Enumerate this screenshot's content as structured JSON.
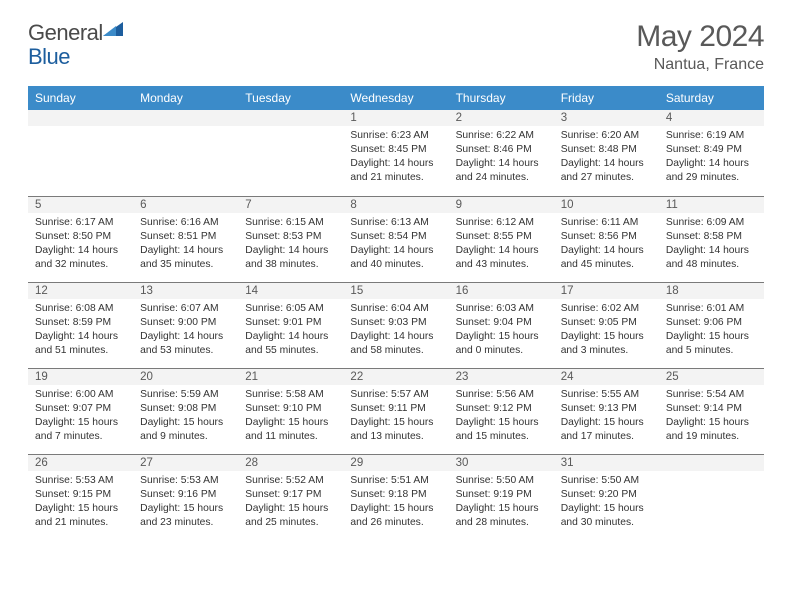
{
  "brand": {
    "part1": "General",
    "part2": "Blue"
  },
  "logo_colors": {
    "dark": "#1d5e9e",
    "light": "#3b8bc9"
  },
  "title": "May 2024",
  "location": "Nantua, France",
  "colors": {
    "header_bg": "#3b8bc9",
    "header_fg": "#ffffff",
    "daynum_bg": "#f3f3f3",
    "divider": "#7a7a7a",
    "text": "#333333",
    "title_text": "#595959"
  },
  "day_headers": [
    "Sunday",
    "Monday",
    "Tuesday",
    "Wednesday",
    "Thursday",
    "Friday",
    "Saturday"
  ],
  "weeks": [
    [
      null,
      null,
      null,
      {
        "d": "1",
        "sr": "6:23 AM",
        "ss": "8:45 PM",
        "dl1": "14 hours",
        "dl2": "and 21 minutes."
      },
      {
        "d": "2",
        "sr": "6:22 AM",
        "ss": "8:46 PM",
        "dl1": "14 hours",
        "dl2": "and 24 minutes."
      },
      {
        "d": "3",
        "sr": "6:20 AM",
        "ss": "8:48 PM",
        "dl1": "14 hours",
        "dl2": "and 27 minutes."
      },
      {
        "d": "4",
        "sr": "6:19 AM",
        "ss": "8:49 PM",
        "dl1": "14 hours",
        "dl2": "and 29 minutes."
      }
    ],
    [
      {
        "d": "5",
        "sr": "6:17 AM",
        "ss": "8:50 PM",
        "dl1": "14 hours",
        "dl2": "and 32 minutes."
      },
      {
        "d": "6",
        "sr": "6:16 AM",
        "ss": "8:51 PM",
        "dl1": "14 hours",
        "dl2": "and 35 minutes."
      },
      {
        "d": "7",
        "sr": "6:15 AM",
        "ss": "8:53 PM",
        "dl1": "14 hours",
        "dl2": "and 38 minutes."
      },
      {
        "d": "8",
        "sr": "6:13 AM",
        "ss": "8:54 PM",
        "dl1": "14 hours",
        "dl2": "and 40 minutes."
      },
      {
        "d": "9",
        "sr": "6:12 AM",
        "ss": "8:55 PM",
        "dl1": "14 hours",
        "dl2": "and 43 minutes."
      },
      {
        "d": "10",
        "sr": "6:11 AM",
        "ss": "8:56 PM",
        "dl1": "14 hours",
        "dl2": "and 45 minutes."
      },
      {
        "d": "11",
        "sr": "6:09 AM",
        "ss": "8:58 PM",
        "dl1": "14 hours",
        "dl2": "and 48 minutes."
      }
    ],
    [
      {
        "d": "12",
        "sr": "6:08 AM",
        "ss": "8:59 PM",
        "dl1": "14 hours",
        "dl2": "and 51 minutes."
      },
      {
        "d": "13",
        "sr": "6:07 AM",
        "ss": "9:00 PM",
        "dl1": "14 hours",
        "dl2": "and 53 minutes."
      },
      {
        "d": "14",
        "sr": "6:05 AM",
        "ss": "9:01 PM",
        "dl1": "14 hours",
        "dl2": "and 55 minutes."
      },
      {
        "d": "15",
        "sr": "6:04 AM",
        "ss": "9:03 PM",
        "dl1": "14 hours",
        "dl2": "and 58 minutes."
      },
      {
        "d": "16",
        "sr": "6:03 AM",
        "ss": "9:04 PM",
        "dl1": "15 hours",
        "dl2": "and 0 minutes."
      },
      {
        "d": "17",
        "sr": "6:02 AM",
        "ss": "9:05 PM",
        "dl1": "15 hours",
        "dl2": "and 3 minutes."
      },
      {
        "d": "18",
        "sr": "6:01 AM",
        "ss": "9:06 PM",
        "dl1": "15 hours",
        "dl2": "and 5 minutes."
      }
    ],
    [
      {
        "d": "19",
        "sr": "6:00 AM",
        "ss": "9:07 PM",
        "dl1": "15 hours",
        "dl2": "and 7 minutes."
      },
      {
        "d": "20",
        "sr": "5:59 AM",
        "ss": "9:08 PM",
        "dl1": "15 hours",
        "dl2": "and 9 minutes."
      },
      {
        "d": "21",
        "sr": "5:58 AM",
        "ss": "9:10 PM",
        "dl1": "15 hours",
        "dl2": "and 11 minutes."
      },
      {
        "d": "22",
        "sr": "5:57 AM",
        "ss": "9:11 PM",
        "dl1": "15 hours",
        "dl2": "and 13 minutes."
      },
      {
        "d": "23",
        "sr": "5:56 AM",
        "ss": "9:12 PM",
        "dl1": "15 hours",
        "dl2": "and 15 minutes."
      },
      {
        "d": "24",
        "sr": "5:55 AM",
        "ss": "9:13 PM",
        "dl1": "15 hours",
        "dl2": "and 17 minutes."
      },
      {
        "d": "25",
        "sr": "5:54 AM",
        "ss": "9:14 PM",
        "dl1": "15 hours",
        "dl2": "and 19 minutes."
      }
    ],
    [
      {
        "d": "26",
        "sr": "5:53 AM",
        "ss": "9:15 PM",
        "dl1": "15 hours",
        "dl2": "and 21 minutes."
      },
      {
        "d": "27",
        "sr": "5:53 AM",
        "ss": "9:16 PM",
        "dl1": "15 hours",
        "dl2": "and 23 minutes."
      },
      {
        "d": "28",
        "sr": "5:52 AM",
        "ss": "9:17 PM",
        "dl1": "15 hours",
        "dl2": "and 25 minutes."
      },
      {
        "d": "29",
        "sr": "5:51 AM",
        "ss": "9:18 PM",
        "dl1": "15 hours",
        "dl2": "and 26 minutes."
      },
      {
        "d": "30",
        "sr": "5:50 AM",
        "ss": "9:19 PM",
        "dl1": "15 hours",
        "dl2": "and 28 minutes."
      },
      {
        "d": "31",
        "sr": "5:50 AM",
        "ss": "9:20 PM",
        "dl1": "15 hours",
        "dl2": "and 30 minutes."
      },
      null
    ]
  ],
  "labels": {
    "sunrise": "Sunrise:",
    "sunset": "Sunset:",
    "daylight": "Daylight:"
  }
}
